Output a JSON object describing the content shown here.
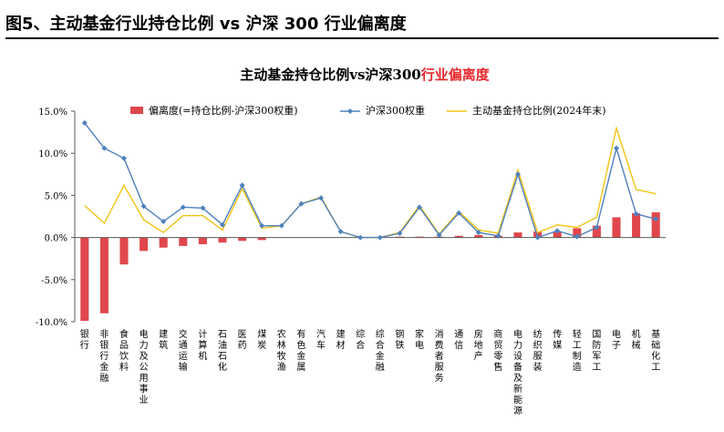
{
  "header": {
    "title": "图5、主动基金行业持仓比例 vs 沪深 300 行业偏离度"
  },
  "chart_data": {
    "type": "bar",
    "title_prefix": "主动基金持仓比例vs沪深300",
    "title_highlight": "行业偏离度",
    "title_highlight_color": "#e8262a",
    "categories": [
      "银行",
      "非银行金融",
      "食品饮料",
      "电力及公用事业",
      "建筑",
      "交通运输",
      "计算机",
      "石油石化",
      "医药",
      "煤炭",
      "农林牧渔",
      "有色金属",
      "汽车",
      "建材",
      "综合",
      "综合金融",
      "钢铁",
      "家电",
      "消费者服务",
      "通信",
      "房地产",
      "商贸零售",
      "电力设备及新能源",
      "纺织服装",
      "传媒",
      "轻工制造",
      "国防军工",
      "电子",
      "机械",
      "基础化工"
    ],
    "ylim": [
      -10,
      15
    ],
    "yticks": [
      "15.0%",
      "10.0%",
      "5.0%",
      "0.0%",
      "-5.0%",
      "-10.0%"
    ],
    "ytick_values": [
      15,
      10,
      5,
      0,
      -5,
      -10
    ],
    "legend_position": "top",
    "series": [
      {
        "name": "偏离度(=持仓比例-沪深300权重)",
        "type": "bar",
        "color": "#e0474c",
        "values": [
          -9.9,
          -9.0,
          -3.2,
          -1.6,
          -1.2,
          -1.0,
          -0.8,
          -0.6,
          -0.4,
          -0.3,
          0.0,
          0.0,
          0.0,
          0.0,
          0.0,
          0.0,
          0.1,
          0.1,
          0.1,
          0.2,
          0.3,
          0.2,
          0.6,
          0.7,
          0.7,
          1.1,
          1.4,
          2.4,
          2.9,
          3.0
        ]
      },
      {
        "name": "沪深300权重",
        "type": "line",
        "color": "#4f81bd",
        "marker": "diamond",
        "values": [
          13.6,
          10.6,
          9.4,
          3.7,
          1.9,
          3.6,
          3.5,
          1.5,
          6.2,
          1.4,
          1.4,
          4.0,
          4.7,
          0.7,
          0.0,
          0.0,
          0.5,
          3.6,
          0.3,
          2.9,
          0.6,
          0.2,
          7.5,
          0.0,
          0.8,
          0.1,
          1.2,
          10.6,
          2.8,
          2.2
        ]
      },
      {
        "name": "主动基金持仓比例(2024年末)",
        "type": "line",
        "color": "#f2c314",
        "values": [
          3.8,
          1.7,
          6.2,
          2.1,
          0.6,
          2.6,
          2.6,
          0.9,
          5.8,
          1.1,
          1.4,
          4.0,
          4.8,
          0.7,
          0.0,
          0.0,
          0.6,
          3.8,
          0.4,
          3.1,
          0.9,
          0.5,
          8.0,
          0.6,
          1.5,
          1.2,
          2.4,
          13.0,
          5.7,
          5.2
        ]
      }
    ]
  }
}
